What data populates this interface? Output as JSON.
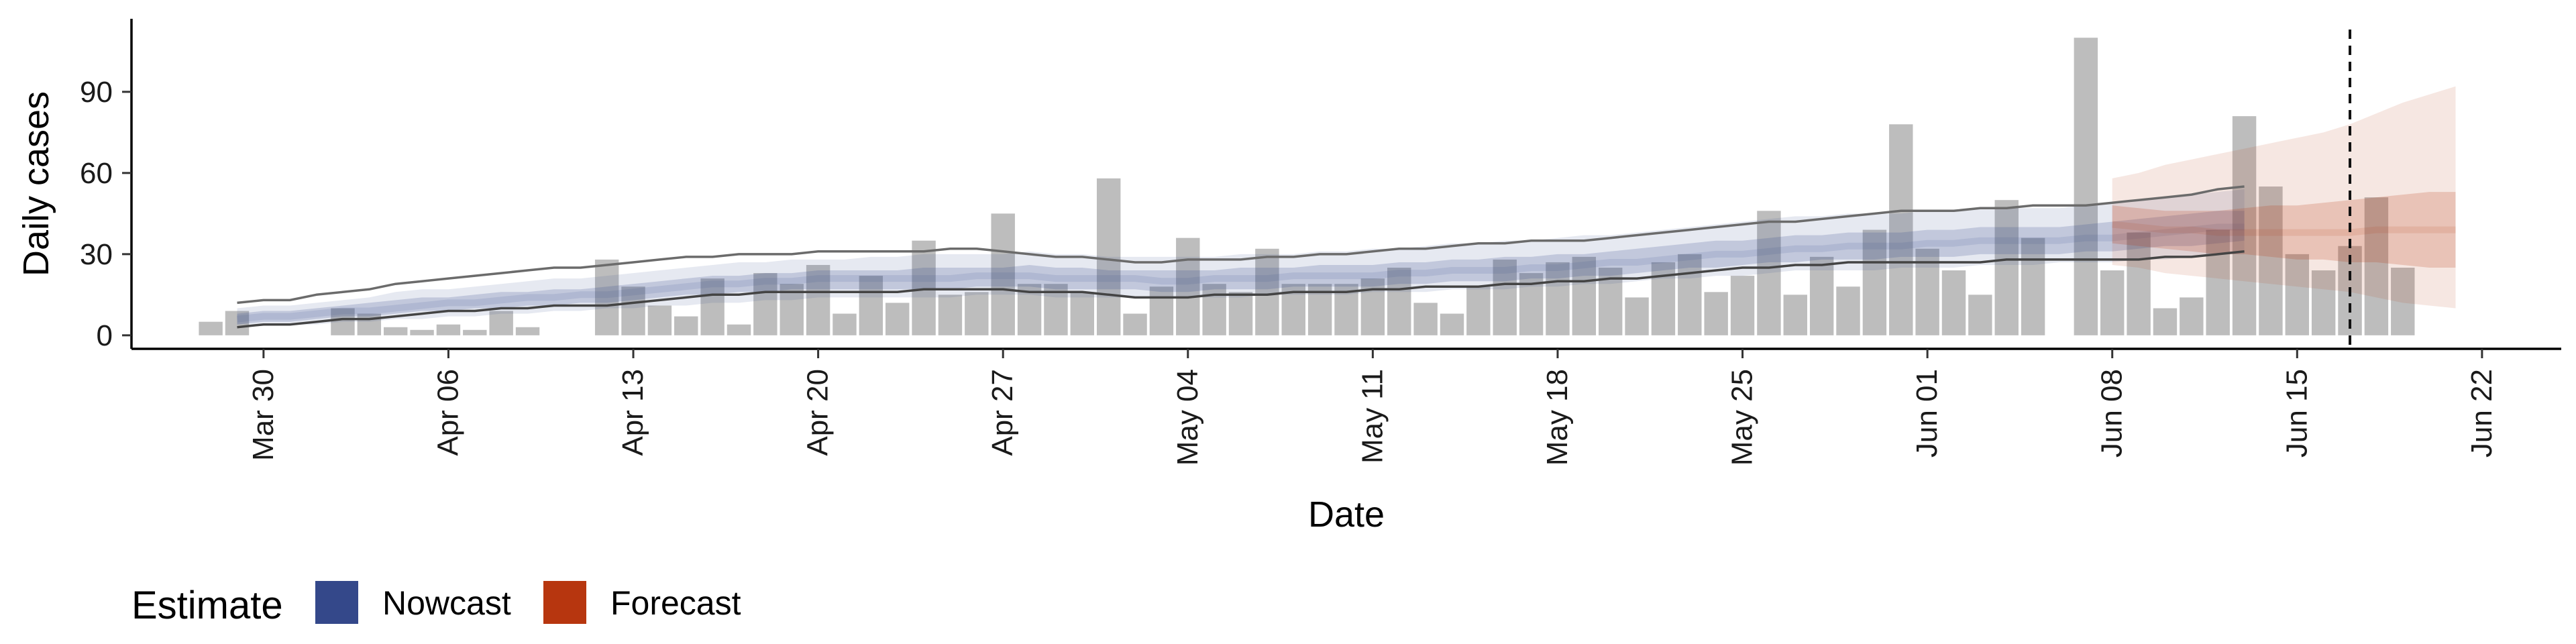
{
  "chart_data": {
    "type": "bar",
    "xlabel": "Date",
    "ylabel": "Daily cases",
    "ylim": [
      -5,
      117
    ],
    "y_ticks": [
      0,
      30,
      60,
      90
    ],
    "x_ticks": [
      {
        "date": "2020-03-30",
        "label": "Mar 30"
      },
      {
        "date": "2020-04-06",
        "label": "Apr 06"
      },
      {
        "date": "2020-04-13",
        "label": "Apr 13"
      },
      {
        "date": "2020-04-20",
        "label": "Apr 20"
      },
      {
        "date": "2020-04-27",
        "label": "Apr 27"
      },
      {
        "date": "2020-05-04",
        "label": "May 04"
      },
      {
        "date": "2020-05-11",
        "label": "May 11"
      },
      {
        "date": "2020-05-18",
        "label": "May 18"
      },
      {
        "date": "2020-05-25",
        "label": "May 25"
      },
      {
        "date": "2020-06-01",
        "label": "Jun 01"
      },
      {
        "date": "2020-06-08",
        "label": "Jun 08"
      },
      {
        "date": "2020-06-15",
        "label": "Jun 15"
      },
      {
        "date": "2020-06-22",
        "label": "Jun 22"
      }
    ],
    "xlim": [
      "2020-03-25",
      "2020-06-25"
    ],
    "reference_line_date": "2020-06-17",
    "bar_start_date": "2020-03-28",
    "bar_values": [
      5,
      9,
      0,
      0,
      0,
      10,
      8,
      3,
      2,
      4,
      2,
      9,
      3,
      0,
      0,
      28,
      18,
      11,
      7,
      21,
      4,
      23,
      19,
      26,
      8,
      22,
      12,
      35,
      15,
      16,
      45,
      19,
      19,
      16,
      58,
      8,
      18,
      36,
      19,
      16,
      32,
      19,
      19,
      19,
      21,
      25,
      12,
      8,
      18,
      28,
      23,
      27,
      29,
      25,
      14,
      27,
      30,
      16,
      22,
      46,
      15,
      29,
      18,
      39,
      78,
      32,
      24,
      15,
      50,
      36,
      0,
      110,
      24,
      38,
      10,
      14,
      39,
      81,
      55,
      30,
      24,
      33,
      51,
      25
    ],
    "series": [
      {
        "name": "Nowcast",
        "color": "#34488a",
        "start_date": "2020-03-29",
        "median": [
          6,
          7,
          7,
          8,
          9,
          9,
          10,
          11,
          12,
          12,
          13,
          14,
          14,
          15,
          15,
          16,
          17,
          18,
          19,
          19,
          20,
          20,
          21,
          21,
          21,
          21,
          21,
          21,
          22,
          22,
          22,
          21,
          21,
          21,
          21,
          20,
          20,
          21,
          21,
          21,
          22,
          22,
          22,
          22,
          23,
          23,
          24,
          24,
          24,
          25,
          25,
          26,
          27,
          27,
          28,
          29,
          30,
          30,
          31,
          32,
          32,
          33,
          33,
          33,
          34,
          34,
          35,
          35,
          35,
          35,
          36,
          36,
          37,
          38,
          39,
          40,
          40
        ],
        "lower_50": [
          4,
          5,
          5,
          6,
          7,
          7,
          8,
          9,
          9,
          10,
          10,
          11,
          11,
          12,
          12,
          13,
          14,
          15,
          15,
          16,
          16,
          17,
          17,
          17,
          17,
          17,
          17,
          17,
          18,
          18,
          18,
          17,
          17,
          17,
          17,
          16,
          16,
          17,
          17,
          17,
          18,
          18,
          18,
          18,
          19,
          19,
          20,
          20,
          20,
          21,
          21,
          22,
          22,
          23,
          24,
          25,
          25,
          26,
          27,
          27,
          28,
          28,
          28,
          29,
          29,
          29,
          30,
          30,
          30,
          30,
          31,
          31,
          32,
          33,
          33,
          34,
          35
        ],
        "upper_50": [
          8,
          9,
          9,
          10,
          11,
          12,
          13,
          14,
          14,
          15,
          16,
          16,
          17,
          17,
          18,
          19,
          20,
          21,
          22,
          22,
          23,
          23,
          24,
          24,
          24,
          24,
          25,
          25,
          25,
          25,
          26,
          25,
          25,
          24,
          24,
          24,
          24,
          24,
          25,
          25,
          25,
          26,
          26,
          26,
          27,
          27,
          28,
          28,
          29,
          29,
          30,
          30,
          31,
          32,
          33,
          34,
          35,
          35,
          36,
          37,
          37,
          38,
          38,
          38,
          39,
          39,
          40,
          40,
          40,
          40,
          41,
          42,
          43,
          44,
          45,
          46,
          46
        ],
        "lower_90": [
          4,
          4,
          4,
          4,
          5,
          5,
          6,
          6,
          7,
          7,
          8,
          8,
          9,
          9,
          10,
          10,
          11,
          11,
          12,
          12,
          13,
          13,
          14,
          14,
          14,
          14,
          14,
          14,
          15,
          15,
          15,
          14,
          14,
          14,
          14,
          14,
          14,
          14,
          14,
          15,
          15,
          15,
          15,
          16,
          16,
          16,
          17,
          17,
          17,
          18,
          18,
          19,
          19,
          20,
          21,
          21,
          22,
          22,
          23,
          24,
          24,
          24,
          24,
          25,
          25,
          25,
          26,
          26,
          26,
          27,
          27,
          27,
          28,
          28,
          29,
          30,
          30
        ],
        "upper_90": [
          10,
          11,
          11,
          12,
          13,
          14,
          16,
          17,
          17,
          18,
          19,
          20,
          21,
          21,
          22,
          23,
          24,
          25,
          26,
          27,
          27,
          28,
          28,
          28,
          29,
          29,
          30,
          30,
          30,
          30,
          31,
          30,
          30,
          29,
          29,
          29,
          29,
          29,
          30,
          30,
          30,
          31,
          31,
          32,
          32,
          33,
          34,
          34,
          35,
          35,
          36,
          37,
          37,
          38,
          39,
          40,
          41,
          42,
          43,
          44,
          44,
          45,
          45,
          45,
          46,
          46,
          47,
          47,
          47,
          47,
          48,
          49,
          50,
          51,
          52,
          53,
          54
        ]
      },
      {
        "name": "Forecast",
        "color": "#b7360f",
        "start_date": "2020-06-08",
        "median": [
          41,
          40,
          39,
          39,
          38,
          38,
          38,
          38,
          38,
          38,
          39,
          39,
          39,
          39
        ],
        "lower_50": [
          34,
          33,
          32,
          31,
          30,
          30,
          29,
          28,
          28,
          27,
          27,
          26,
          25,
          25
        ],
        "upper_50": [
          48,
          47,
          46,
          46,
          46,
          47,
          48,
          48,
          49,
          50,
          51,
          52,
          53,
          53
        ],
        "lower_90": [
          26,
          25,
          23,
          22,
          21,
          20,
          19,
          18,
          17,
          16,
          14,
          12,
          11,
          10
        ],
        "upper_90": [
          58,
          60,
          63,
          65,
          67,
          69,
          71,
          73,
          75,
          78,
          82,
          86,
          89,
          92
        ]
      }
    ],
    "outer_lines": {
      "start_date": "2020-03-29",
      "upper": [
        12,
        13,
        13,
        15,
        16,
        17,
        19,
        20,
        21,
        22,
        23,
        24,
        25,
        25,
        26,
        27,
        28,
        29,
        29,
        30,
        30,
        30,
        31,
        31,
        31,
        31,
        31,
        32,
        32,
        31,
        30,
        29,
        29,
        28,
        27,
        27,
        28,
        28,
        28,
        29,
        29,
        30,
        30,
        31,
        32,
        32,
        33,
        34,
        34,
        35,
        35,
        35,
        36,
        37,
        38,
        39,
        40,
        41,
        42,
        42,
        43,
        44,
        45,
        46,
        46,
        46,
        47,
        47,
        48,
        48,
        48,
        49,
        50,
        51,
        52,
        54,
        55
      ],
      "lower": [
        3,
        4,
        4,
        5,
        6,
        6,
        7,
        8,
        9,
        9,
        10,
        10,
        11,
        11,
        11,
        12,
        13,
        14,
        15,
        15,
        16,
        16,
        16,
        16,
        16,
        16,
        17,
        17,
        17,
        17,
        16,
        16,
        16,
        15,
        14,
        14,
        14,
        15,
        15,
        15,
        16,
        16,
        16,
        17,
        17,
        18,
        18,
        18,
        19,
        19,
        20,
        20,
        21,
        21,
        22,
        23,
        24,
        25,
        25,
        26,
        26,
        27,
        27,
        27,
        27,
        27,
        27,
        28,
        28,
        28,
        28,
        28,
        28,
        29,
        29,
        30,
        31
      ]
    },
    "legend": {
      "title": "Estimate",
      "placement": "bottom-left",
      "entries": [
        {
          "label": "Nowcast",
          "color": "#34488a"
        },
        {
          "label": "Forecast",
          "color": "#b7360f"
        }
      ]
    },
    "grid": false
  }
}
